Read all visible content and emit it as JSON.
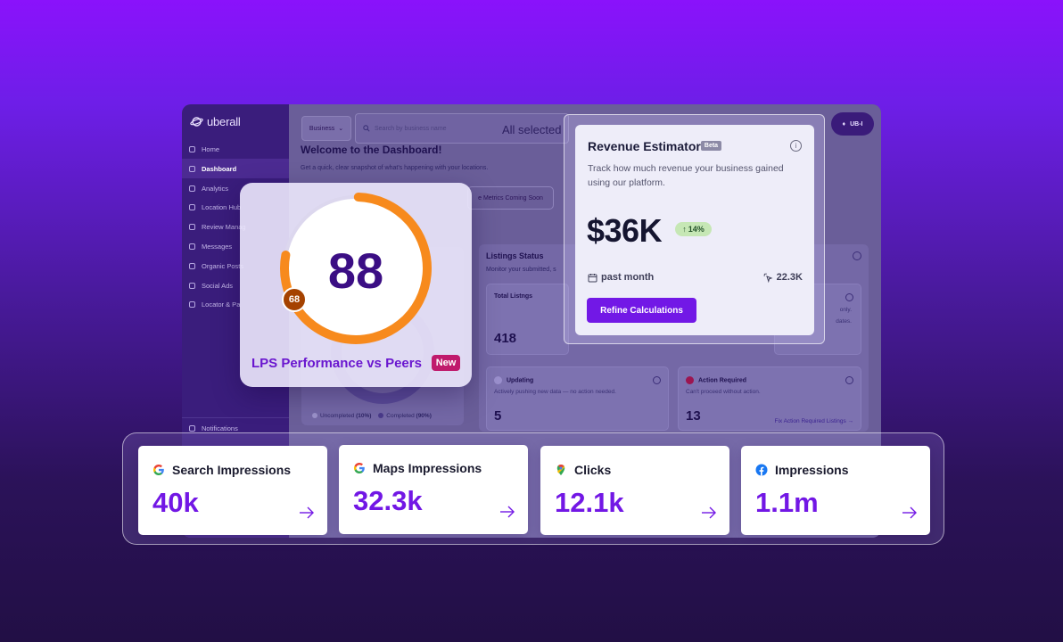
{
  "app": {
    "logo": "uberall",
    "account": "UB-I"
  },
  "sidebar": {
    "items": [
      {
        "label": "Home",
        "active": false
      },
      {
        "label": "Dashboard",
        "active": true
      },
      {
        "label": "Analytics",
        "active": false
      },
      {
        "label": "Location Hub",
        "active": false
      },
      {
        "label": "Review Manag",
        "active": false
      },
      {
        "label": "Messages",
        "active": false
      },
      {
        "label": "Organic Posts",
        "active": false
      },
      {
        "label": "Social Ads",
        "active": false
      },
      {
        "label": "Locator & Pa",
        "active": false
      }
    ],
    "bottom_item": "Notifications"
  },
  "toolbar": {
    "business_label": "Business",
    "search_placeholder": "Search by business name",
    "selection": "All selected"
  },
  "welcome": {
    "title": "Welcome to the Dashboard!",
    "subtitle": "Get a quick, clear snapshot of what's happening with your locations.",
    "coming_soon": "e Metrics Coming Soon"
  },
  "listings": {
    "title": "Listings Status",
    "subtitle": "Monitor your submitted, s",
    "total_label": "Total Listngs",
    "total_value": "418",
    "only_text": "only.",
    "dates_text": "dates.",
    "updating": {
      "label": "Updating",
      "desc": "Actively pushing new data — no action needed.",
      "value": "5"
    },
    "action": {
      "label": "Action Required",
      "desc": "Can't proceed without action.",
      "value": "13",
      "link": "Fix Action Required Listings →"
    }
  },
  "completion": {
    "uncompleted_label": "Uncompleted",
    "uncompleted_pct": "(10%)",
    "completed_label": "Completed",
    "completed_pct": "(90%)"
  },
  "lps": {
    "score": "88",
    "peer_score": "68",
    "score_fraction": 0.88,
    "peer_fraction": 0.68,
    "label": "LPS Performance vs Peers",
    "badge": "New",
    "ring_color": "#f78a1d",
    "peer_color": "#3d0e84"
  },
  "revenue": {
    "title": "Revenue Estimator",
    "badge": "Beta",
    "info": "i",
    "description": "Track how much revenue your business gained using our platform.",
    "value": "$36K",
    "change": "14%",
    "period": "past month",
    "clicks": "22.3K",
    "button": "Refine Calculations"
  },
  "metrics": [
    {
      "icon": "google-icon",
      "label": "Search Impressions",
      "value": "40k"
    },
    {
      "icon": "google-icon",
      "label": "Maps Impressions",
      "value": "32.3k"
    },
    {
      "icon": "google-maps-pin-icon",
      "label": "Clicks",
      "value": "12.1k"
    },
    {
      "icon": "facebook-icon",
      "label": "Impressions",
      "value": "1.1m"
    }
  ],
  "colors": {
    "accent": "#7217e5",
    "lps_text": "#6a17cf",
    "new_badge": "#c01a6c",
    "change_bg": "#c6e7b5"
  }
}
